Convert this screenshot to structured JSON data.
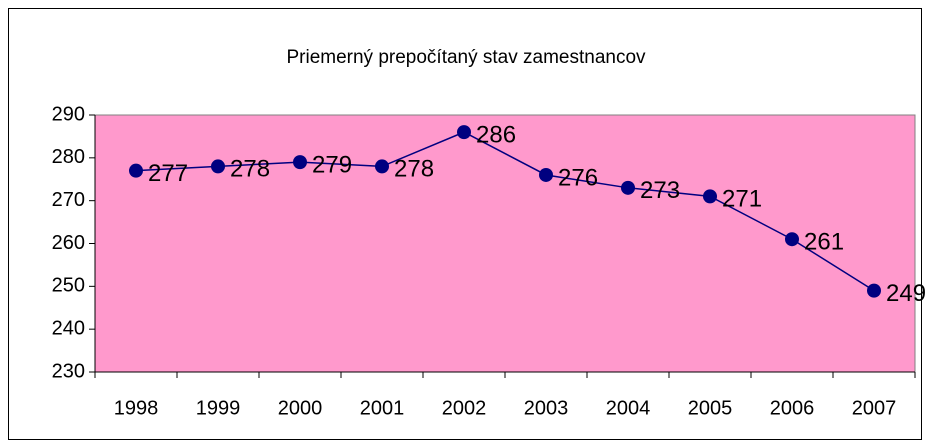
{
  "chart_data": {
    "type": "line",
    "title": "Priemerný prepočítaný stav zamestnancov",
    "categories": [
      "1998",
      "1999",
      "2000",
      "2001",
      "2002",
      "2003",
      "2004",
      "2005",
      "2006",
      "2007"
    ],
    "values": [
      277,
      278,
      279,
      278,
      286,
      276,
      273,
      271,
      261,
      249
    ],
    "color": "#000080",
    "plot_background": "#ff99cc",
    "ylim": [
      230,
      290
    ],
    "yticks": [
      230,
      240,
      250,
      260,
      270,
      280,
      290
    ],
    "data_labels": true
  }
}
